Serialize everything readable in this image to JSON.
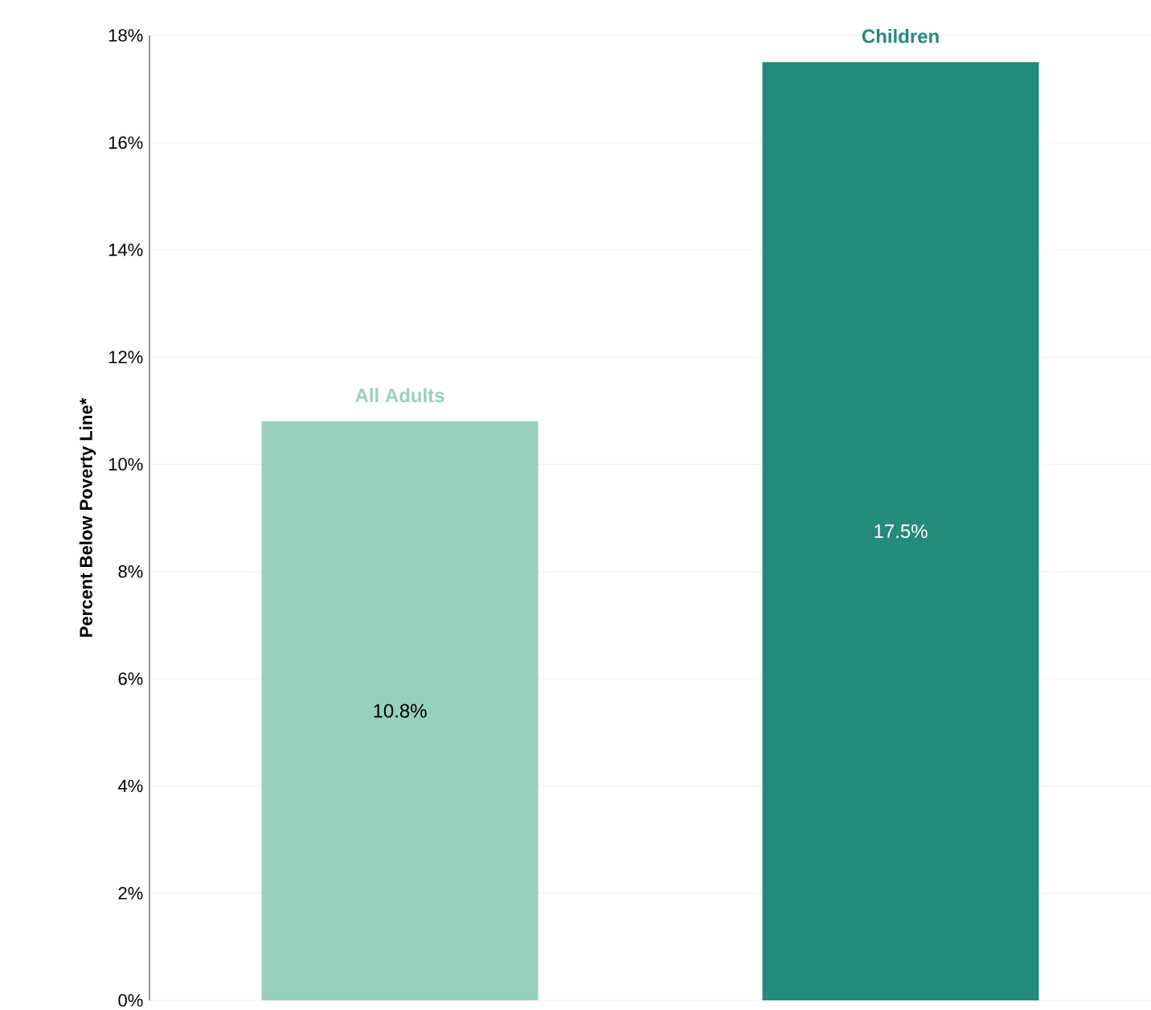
{
  "chart_data": {
    "type": "bar",
    "ylabel": "Percent Below Poverty Line*",
    "categories": [
      "All Adults",
      "Children"
    ],
    "values": [
      10.8,
      17.5
    ],
    "colors": [
      "#98d0bf",
      "#248a7a"
    ],
    "value_labels": [
      "10.8%",
      "17.5%"
    ],
    "ylim": [
      0,
      18
    ],
    "yticks": [
      {
        "value": 0,
        "label": "0%"
      },
      {
        "value": 2,
        "label": "2%"
      },
      {
        "value": 4,
        "label": "4%"
      },
      {
        "value": 6,
        "label": "6%"
      },
      {
        "value": 8,
        "label": "8%"
      },
      {
        "value": 10,
        "label": "10%"
      },
      {
        "value": 12,
        "label": "12%"
      },
      {
        "value": 14,
        "label": "14%"
      },
      {
        "value": 16,
        "label": "16%"
      },
      {
        "value": 18,
        "label": "18%"
      }
    ],
    "grid": "y"
  }
}
